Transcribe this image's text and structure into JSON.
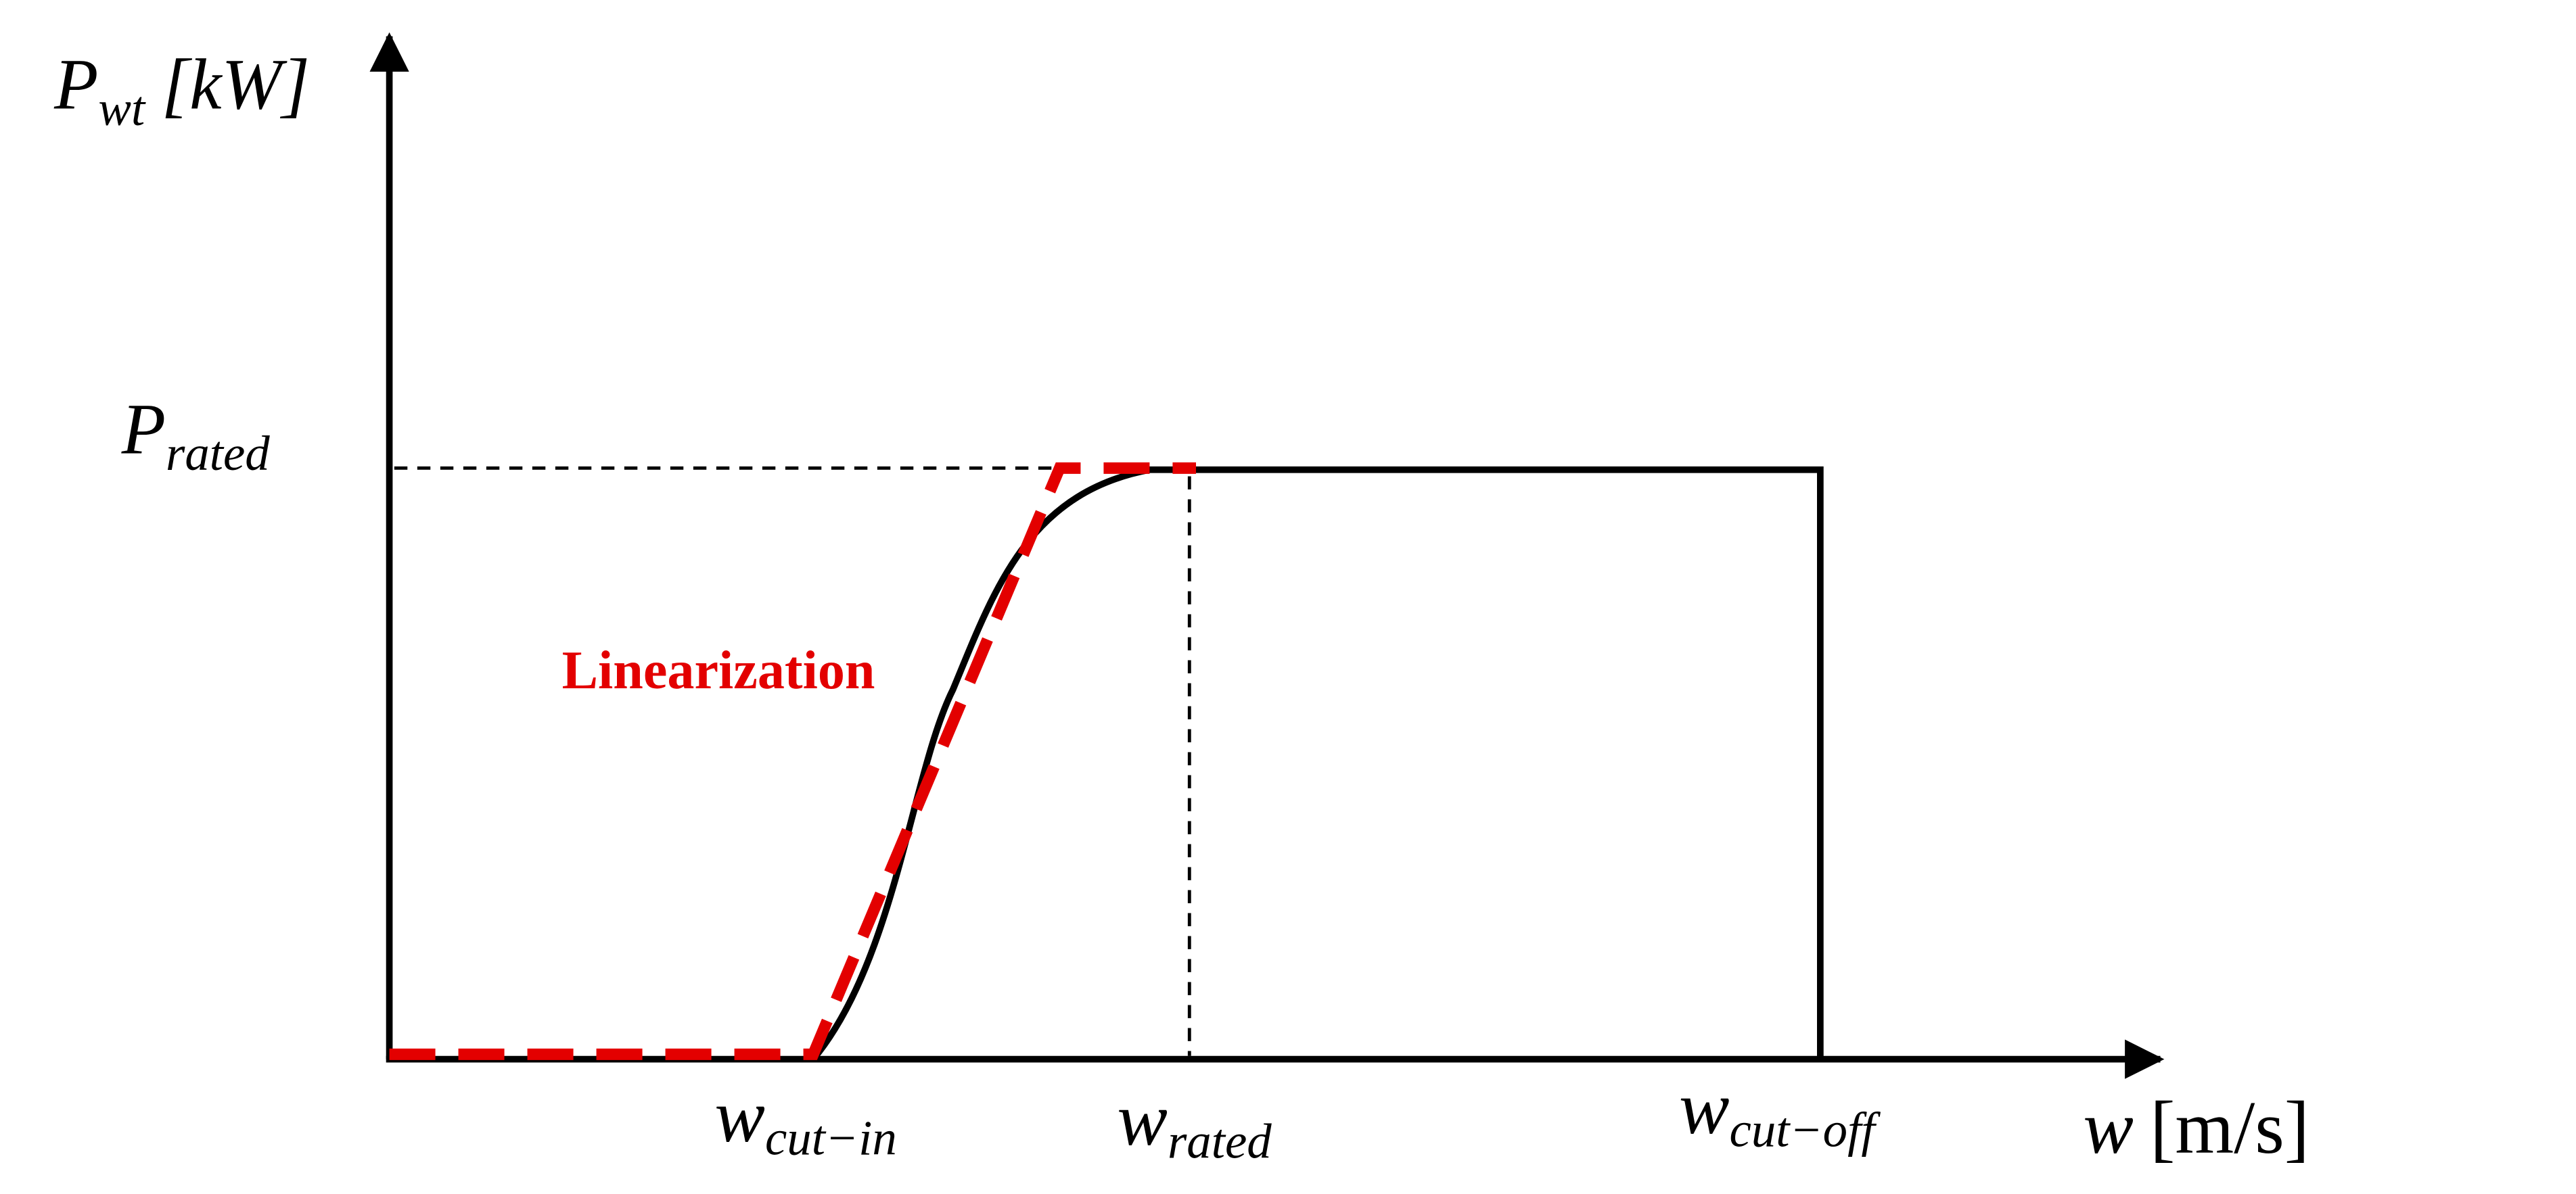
{
  "y_axis_label": {
    "symbol": "P",
    "subscript": "wt",
    "unit": "[kW]"
  },
  "rated_power_label": {
    "symbol": "P",
    "subscript": "rated"
  },
  "linearization_label": "Linearization",
  "x_labels": [
    {
      "symbol": "w",
      "subscript": "cut−in"
    },
    {
      "symbol": "w",
      "subscript": "rated"
    },
    {
      "symbol": "w",
      "subscript": "cut−off"
    }
  ],
  "x_axis_label": {
    "symbol": "w",
    "unit": "[m/s]"
  }
}
